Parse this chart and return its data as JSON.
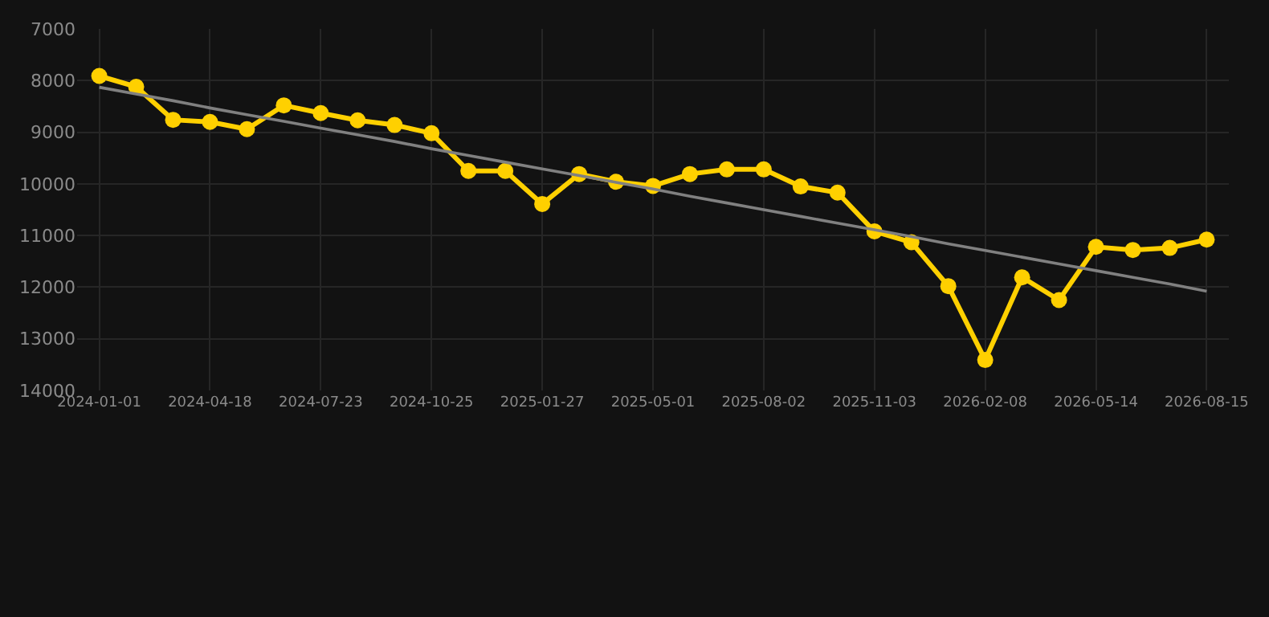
{
  "chart_data": {
    "type": "line",
    "categories": [
      "2024-01-01",
      null,
      null,
      "2024-04-18",
      null,
      null,
      "2024-07-23",
      null,
      null,
      "2024-10-25",
      null,
      null,
      "2025-01-27",
      null,
      null,
      "2025-05-01",
      null,
      null,
      "2025-08-02",
      null,
      null,
      "2025-11-03",
      null,
      null,
      "2026-02-08",
      null,
      null,
      "2026-05-14",
      null,
      null,
      "2026-08-15"
    ],
    "series": [
      {
        "color": "#ffd000",
        "marker": "circle",
        "values": [
          7910,
          8120,
          8760,
          8800,
          8940,
          8480,
          8630,
          8770,
          8860,
          9020,
          9750,
          9750,
          10390,
          9810,
          9960,
          10040,
          9810,
          9720,
          9720,
          10050,
          10170,
          10920,
          11130,
          11980,
          13410,
          11810,
          12250,
          11220,
          11280,
          11240,
          11080
        ]
      },
      {
        "type": "line",
        "color": "#808080",
        "marker": "none",
        "values": [
          8130,
          8260,
          8390,
          8530,
          8660,
          8790,
          8920,
          9050,
          9180,
          9320,
          9450,
          9580,
          9710,
          9840,
          9970,
          10100,
          10240,
          10370,
          10500,
          10630,
          10760,
          10890,
          11020,
          11160,
          11290,
          11420,
          11550,
          11680,
          11810,
          11940,
          12080
        ]
      }
    ],
    "ylim": [
      14000,
      7000
    ],
    "yticks": [
      7000,
      8000,
      9000,
      10000,
      11000,
      12000,
      13000,
      14000
    ],
    "grid": true
  }
}
